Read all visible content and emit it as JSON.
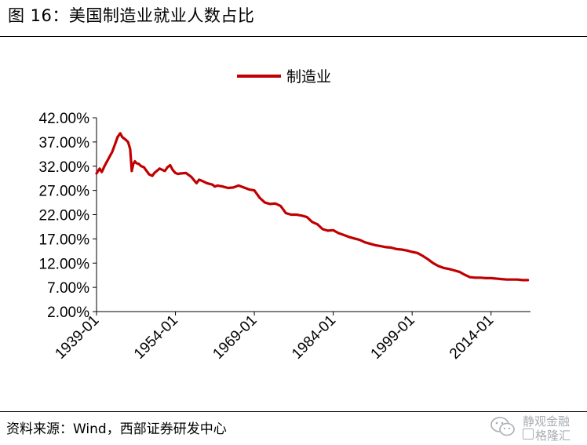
{
  "header": {
    "title": "图 16：美国制造业就业人数占比"
  },
  "footer": {
    "source": "资料来源：Wind，西部证券研发中心",
    "watermark_line1": "静观金融",
    "watermark_line2": "格隆汇"
  },
  "colors": {
    "series": "#C00000",
    "axis": "#000000"
  },
  "icons": {
    "watermark_logo": "wechat-logo-icon"
  },
  "chart_data": {
    "type": "line",
    "legend": [
      "制造业"
    ],
    "legend_position": "top-center",
    "grid": false,
    "ylim": [
      2.0,
      42.0
    ],
    "y_ticks": [
      "42.00%",
      "37.00%",
      "32.00%",
      "27.00%",
      "22.00%",
      "17.00%",
      "12.00%",
      "7.00%",
      "2.00%"
    ],
    "y_tick_values": [
      42,
      37,
      32,
      27,
      22,
      17,
      12,
      7,
      2
    ],
    "x_ticks": [
      "1939-01",
      "1954-01",
      "1969-01",
      "1984-01",
      "1999-01",
      "2014-01"
    ],
    "x_tick_values": [
      1939.0,
      1954.0,
      1969.0,
      1984.0,
      1999.0,
      2014.0
    ],
    "xlim": [
      1939.0,
      2021.5
    ],
    "series": [
      {
        "name": "制造业",
        "x": [
          1939.0,
          1939.6,
          1940.0,
          1940.5,
          1941.0,
          1941.5,
          1942.0,
          1942.5,
          1943.0,
          1943.5,
          1943.9,
          1944.5,
          1945.0,
          1945.4,
          1945.7,
          1946.0,
          1946.3,
          1946.6,
          1947.0,
          1947.5,
          1948.0,
          1949.0,
          1949.6,
          1950.0,
          1951.0,
          1952.0,
          1952.5,
          1953.0,
          1953.5,
          1954.0,
          1954.5,
          1955.0,
          1956.0,
          1957.0,
          1958.0,
          1958.5,
          1959.0,
          1960.0,
          1961.0,
          1961.5,
          1962.0,
          1963.0,
          1964.0,
          1965.0,
          1966.0,
          1967.0,
          1968.0,
          1969.0,
          1970.0,
          1971.0,
          1972.0,
          1973.0,
          1974.0,
          1975.0,
          1976.0,
          1977.0,
          1978.0,
          1979.0,
          1980.0,
          1981.0,
          1982.0,
          1983.0,
          1984.0,
          1985.0,
          1986.0,
          1987.0,
          1988.0,
          1989.0,
          1990.0,
          1991.0,
          1992.0,
          1993.0,
          1994.0,
          1995.0,
          1996.0,
          1997.0,
          1998.0,
          1999.0,
          2000.0,
          2001.0,
          2002.0,
          2003.0,
          2004.0,
          2005.0,
          2006.0,
          2007.0,
          2008.0,
          2009.0,
          2010.0,
          2011.0,
          2012.0,
          2013.0,
          2014.0,
          2015.0,
          2016.0,
          2017.0,
          2018.0,
          2019.0,
          2020.0,
          2021.0
        ],
        "y": [
          30.5,
          31.5,
          30.8,
          32.0,
          33.0,
          34.0,
          35.0,
          36.5,
          38.0,
          38.8,
          38.0,
          37.5,
          37.0,
          35.5,
          31.0,
          32.5,
          33.0,
          32.6,
          32.5,
          32.0,
          31.8,
          30.3,
          30.0,
          30.6,
          31.5,
          31.0,
          31.8,
          32.2,
          31.2,
          30.6,
          30.4,
          30.5,
          30.6,
          29.8,
          28.5,
          29.2,
          29.0,
          28.5,
          28.2,
          27.8,
          28.0,
          27.8,
          27.5,
          27.6,
          28.0,
          27.6,
          27.2,
          27.0,
          25.5,
          24.5,
          24.2,
          24.3,
          23.8,
          22.3,
          22.0,
          22.0,
          21.8,
          21.5,
          20.5,
          20.0,
          19.0,
          18.7,
          18.8,
          18.2,
          17.8,
          17.4,
          17.1,
          16.8,
          16.3,
          16.0,
          15.7,
          15.5,
          15.3,
          15.2,
          14.9,
          14.8,
          14.6,
          14.3,
          14.1,
          13.5,
          12.8,
          12.0,
          11.4,
          11.0,
          10.8,
          10.5,
          10.2,
          9.6,
          9.1,
          9.0,
          9.0,
          8.9,
          8.9,
          8.8,
          8.7,
          8.6,
          8.6,
          8.6,
          8.5,
          8.5
        ]
      }
    ]
  }
}
